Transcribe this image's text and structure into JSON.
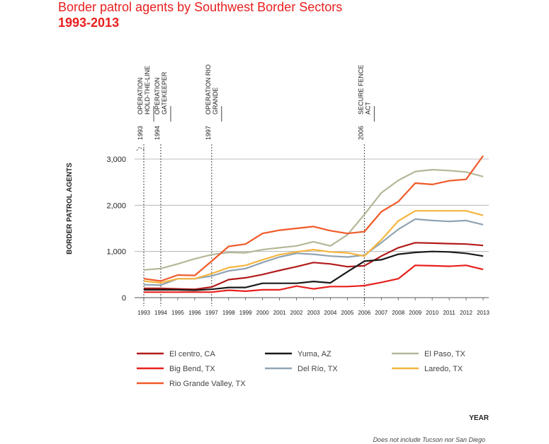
{
  "chart_data": {
    "type": "line",
    "title": "Border patrol agents by Southwest Border Sectors",
    "subtitle": "1993-2013",
    "ylabel": "BORDER PATROL AGENTS",
    "xlabel": "YEAR",
    "note": "Does not include Tucson nor San Diego",
    "x": [
      1993,
      1994,
      1995,
      1996,
      1997,
      1998,
      1999,
      2000,
      2001,
      2002,
      2003,
      2004,
      2005,
      2006,
      2007,
      2008,
      2009,
      2010,
      2011,
      2012,
      2013
    ],
    "ylim": [
      0,
      3000
    ],
    "yticks": [
      0,
      1000,
      2000,
      3000
    ],
    "ytick_labels": [
      "0",
      "1,000",
      "2,000",
      "3,000"
    ],
    "grid": true,
    "legend_placement": "bottom",
    "series": [
      {
        "name": "El centro, CA",
        "color": "#b31b1b",
        "values": [
          200,
          200,
          190,
          180,
          230,
          390,
          430,
          500,
          590,
          670,
          760,
          730,
          670,
          690,
          900,
          1080,
          1190,
          1180,
          1170,
          1160,
          1130
        ]
      },
      {
        "name": "Yuma, AZ",
        "color": "#1a1a1a",
        "values": [
          170,
          170,
          170,
          160,
          180,
          220,
          220,
          310,
          310,
          310,
          350,
          320,
          560,
          790,
          820,
          940,
          980,
          1000,
          990,
          960,
          900
        ]
      },
      {
        "name": "El Paso, TX",
        "color": "#b5b799",
        "values": [
          600,
          630,
          730,
          840,
          930,
          980,
          970,
          1040,
          1080,
          1120,
          1210,
          1120,
          1360,
          1800,
          2270,
          2540,
          2730,
          2770,
          2750,
          2720,
          2620
        ]
      },
      {
        "name": "Big Bend, TX",
        "color": "#e8201e",
        "values": [
          120,
          120,
          120,
          120,
          120,
          160,
          140,
          170,
          170,
          250,
          190,
          240,
          240,
          260,
          330,
          410,
          700,
          690,
          680,
          700,
          610
        ]
      },
      {
        "name": "Del Río, TX",
        "color": "#8fa3b3",
        "values": [
          280,
          270,
          410,
          410,
          470,
          580,
          630,
          760,
          880,
          960,
          940,
          900,
          880,
          920,
          1190,
          1480,
          1700,
          1670,
          1650,
          1670,
          1580
        ]
      },
      {
        "name": "Laredo, TX",
        "color": "#f5b53f",
        "values": [
          360,
          320,
          410,
          410,
          520,
          650,
          700,
          820,
          930,
          990,
          1040,
          990,
          970,
          900,
          1250,
          1660,
          1880,
          1880,
          1880,
          1880,
          1780
        ]
      },
      {
        "name": "Rio Grande Valley, TX",
        "color": "#f05a28",
        "values": [
          410,
          360,
          490,
          480,
          790,
          1110,
          1160,
          1390,
          1460,
          1500,
          1540,
          1450,
          1390,
          1430,
          1860,
          2080,
          2480,
          2450,
          2530,
          2560,
          3070
        ]
      }
    ],
    "annotations": [
      {
        "year": 1993,
        "year_label": "1993",
        "lines": [
          "OPERATION",
          "HOLD-THE-LINE"
        ]
      },
      {
        "year": 1994,
        "year_label": "1994",
        "lines": [
          "OPERATION",
          "GATEKEEPER"
        ]
      },
      {
        "year": 1997,
        "year_label": "1997",
        "lines": [
          "OPERATION RIO",
          "GRANDE"
        ]
      },
      {
        "year": 2006,
        "year_label": "2006",
        "lines": [
          "SECURE FENCE",
          "ACT"
        ]
      }
    ]
  }
}
